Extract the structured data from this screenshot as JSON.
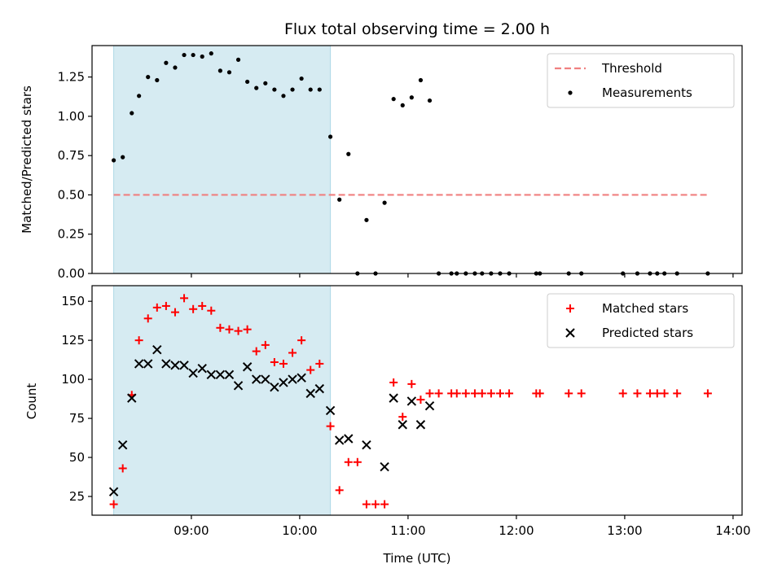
{
  "chart_data": [
    {
      "type": "scatter",
      "title": "Flux total observing time = 2.00 h",
      "xlabel": "",
      "ylabel": "Matched/Predicted stars",
      "ylim": [
        0,
        1.45
      ],
      "yticks": [
        0.0,
        0.25,
        0.5,
        0.75,
        1.0,
        1.25
      ],
      "ytick_labels": [
        "0.00",
        "0.25",
        "0.50",
        "0.75",
        "1.00",
        "1.25"
      ],
      "xlim": [
        "08:05",
        "14:05"
      ],
      "xticks": [
        "09:00",
        "10:00",
        "11:00",
        "12:00",
        "13:00",
        "14:00"
      ],
      "xtick_labels_shown": false,
      "shaded_span": [
        "08:17",
        "10:17"
      ],
      "shade_color": "#add8e6",
      "legend": {
        "position": "upper right",
        "entries": [
          "Threshold",
          "Measurements"
        ]
      },
      "series": [
        {
          "name": "Threshold",
          "kind": "dashed-line",
          "color": "#f08080",
          "x": [
            "08:17",
            "13:47"
          ],
          "y": [
            0.5,
            0.5
          ]
        },
        {
          "name": "Measurements",
          "kind": "dot",
          "color": "#000000",
          "points": [
            [
              "08:17",
              0.72
            ],
            [
              "08:22",
              0.74
            ],
            [
              "08:27",
              1.02
            ],
            [
              "08:31",
              1.13
            ],
            [
              "08:36",
              1.25
            ],
            [
              "08:41",
              1.23
            ],
            [
              "08:46",
              1.34
            ],
            [
              "08:51",
              1.31
            ],
            [
              "08:56",
              1.39
            ],
            [
              "09:01",
              1.39
            ],
            [
              "09:06",
              1.38
            ],
            [
              "09:11",
              1.4
            ],
            [
              "09:16",
              1.29
            ],
            [
              "09:21",
              1.28
            ],
            [
              "09:26",
              1.36
            ],
            [
              "09:31",
              1.22
            ],
            [
              "09:36",
              1.18
            ],
            [
              "09:41",
              1.21
            ],
            [
              "09:46",
              1.17
            ],
            [
              "09:51",
              1.13
            ],
            [
              "09:56",
              1.17
            ],
            [
              "10:01",
              1.24
            ],
            [
              "10:06",
              1.17
            ],
            [
              "10:11",
              1.17
            ],
            [
              "10:17",
              0.87
            ],
            [
              "10:22",
              0.47
            ],
            [
              "10:27",
              0.76
            ],
            [
              "10:32",
              0.0
            ],
            [
              "10:37",
              0.34
            ],
            [
              "10:42",
              0.0
            ],
            [
              "10:47",
              0.45
            ],
            [
              "10:52",
              1.11
            ],
            [
              "10:57",
              1.07
            ],
            [
              "11:02",
              1.12
            ],
            [
              "11:07",
              1.23
            ],
            [
              "11:12",
              1.1
            ],
            [
              "11:17",
              0.0
            ],
            [
              "11:24",
              0.0
            ],
            [
              "11:27",
              0.0
            ],
            [
              "11:32",
              0.0
            ],
            [
              "11:37",
              0.0
            ],
            [
              "11:41",
              0.0
            ],
            [
              "11:46",
              0.0
            ],
            [
              "11:51",
              0.0
            ],
            [
              "11:56",
              0.0
            ],
            [
              "12:11",
              0.0
            ],
            [
              "12:13",
              0.0
            ],
            [
              "12:29",
              0.0
            ],
            [
              "12:36",
              0.0
            ],
            [
              "12:59",
              0.0
            ],
            [
              "13:07",
              0.0
            ],
            [
              "13:14",
              0.0
            ],
            [
              "13:18",
              0.0
            ],
            [
              "13:22",
              0.0
            ],
            [
              "13:29",
              0.0
            ],
            [
              "13:46",
              0.0
            ]
          ]
        }
      ]
    },
    {
      "type": "scatter",
      "title": "",
      "xlabel": "Time (UTC)",
      "ylabel": "Count",
      "ylim": [
        13,
        160
      ],
      "yticks": [
        25,
        50,
        75,
        100,
        125,
        150
      ],
      "ytick_labels": [
        "25",
        "50",
        "75",
        "100",
        "125",
        "150"
      ],
      "xlim": [
        "08:05",
        "14:05"
      ],
      "xticks": [
        "09:00",
        "10:00",
        "11:00",
        "12:00",
        "13:00",
        "14:00"
      ],
      "xtick_labels": [
        "09:00",
        "10:00",
        "11:00",
        "12:00",
        "13:00",
        "14:00"
      ],
      "shaded_span": [
        "08:17",
        "10:17"
      ],
      "shade_color": "#add8e6",
      "legend": {
        "position": "upper right",
        "entries": [
          "Matched stars",
          "Predicted stars"
        ]
      },
      "series": [
        {
          "name": "Matched stars",
          "kind": "plus",
          "color": "#ff0000",
          "points": [
            [
              "08:17",
              20
            ],
            [
              "08:22",
              43
            ],
            [
              "08:27",
              90
            ],
            [
              "08:31",
              125
            ],
            [
              "08:36",
              139
            ],
            [
              "08:41",
              146
            ],
            [
              "08:46",
              147
            ],
            [
              "08:51",
              143
            ],
            [
              "08:56",
              152
            ],
            [
              "09:01",
              145
            ],
            [
              "09:06",
              147
            ],
            [
              "09:11",
              144
            ],
            [
              "09:16",
              133
            ],
            [
              "09:21",
              132
            ],
            [
              "09:26",
              131
            ],
            [
              "09:31",
              132
            ],
            [
              "09:36",
              118
            ],
            [
              "09:41",
              122
            ],
            [
              "09:46",
              111
            ],
            [
              "09:51",
              110
            ],
            [
              "09:56",
              117
            ],
            [
              "10:01",
              125
            ],
            [
              "10:06",
              106
            ],
            [
              "10:11",
              110
            ],
            [
              "10:17",
              70
            ],
            [
              "10:22",
              29
            ],
            [
              "10:27",
              47
            ],
            [
              "10:32",
              47
            ],
            [
              "10:37",
              20
            ],
            [
              "10:42",
              20
            ],
            [
              "10:47",
              20
            ],
            [
              "10:52",
              98
            ],
            [
              "10:57",
              76
            ],
            [
              "11:02",
              97
            ],
            [
              "11:07",
              87
            ],
            [
              "11:12",
              91
            ],
            [
              "11:17",
              91
            ],
            [
              "11:24",
              91
            ],
            [
              "11:27",
              91
            ],
            [
              "11:32",
              91
            ],
            [
              "11:37",
              91
            ],
            [
              "11:41",
              91
            ],
            [
              "11:46",
              91
            ],
            [
              "11:51",
              91
            ],
            [
              "11:56",
              91
            ],
            [
              "12:11",
              91
            ],
            [
              "12:13",
              91
            ],
            [
              "12:29",
              91
            ],
            [
              "12:36",
              91
            ],
            [
              "12:59",
              91
            ],
            [
              "13:07",
              91
            ],
            [
              "13:14",
              91
            ],
            [
              "13:18",
              91
            ],
            [
              "13:22",
              91
            ],
            [
              "13:29",
              91
            ],
            [
              "13:46",
              91
            ]
          ]
        },
        {
          "name": "Predicted stars",
          "kind": "x",
          "color": "#000000",
          "points": [
            [
              "08:17",
              28
            ],
            [
              "08:22",
              58
            ],
            [
              "08:27",
              88
            ],
            [
              "08:31",
              110
            ],
            [
              "08:36",
              110
            ],
            [
              "08:41",
              119
            ],
            [
              "08:46",
              110
            ],
            [
              "08:51",
              109
            ],
            [
              "08:56",
              109
            ],
            [
              "09:01",
              104
            ],
            [
              "09:06",
              107
            ],
            [
              "09:11",
              103
            ],
            [
              "09:16",
              103
            ],
            [
              "09:21",
              103
            ],
            [
              "09:26",
              96
            ],
            [
              "09:31",
              108
            ],
            [
              "09:36",
              100
            ],
            [
              "09:41",
              100
            ],
            [
              "09:46",
              95
            ],
            [
              "09:51",
              98
            ],
            [
              "09:56",
              100
            ],
            [
              "10:01",
              101
            ],
            [
              "10:06",
              91
            ],
            [
              "10:11",
              94
            ],
            [
              "10:17",
              80
            ],
            [
              "10:22",
              61
            ],
            [
              "10:27",
              62
            ],
            [
              "10:37",
              58
            ],
            [
              "10:47",
              44
            ],
            [
              "10:52",
              88
            ],
            [
              "10:57",
              71
            ],
            [
              "11:02",
              86
            ],
            [
              "11:07",
              71
            ],
            [
              "11:12",
              83
            ]
          ]
        }
      ]
    }
  ]
}
